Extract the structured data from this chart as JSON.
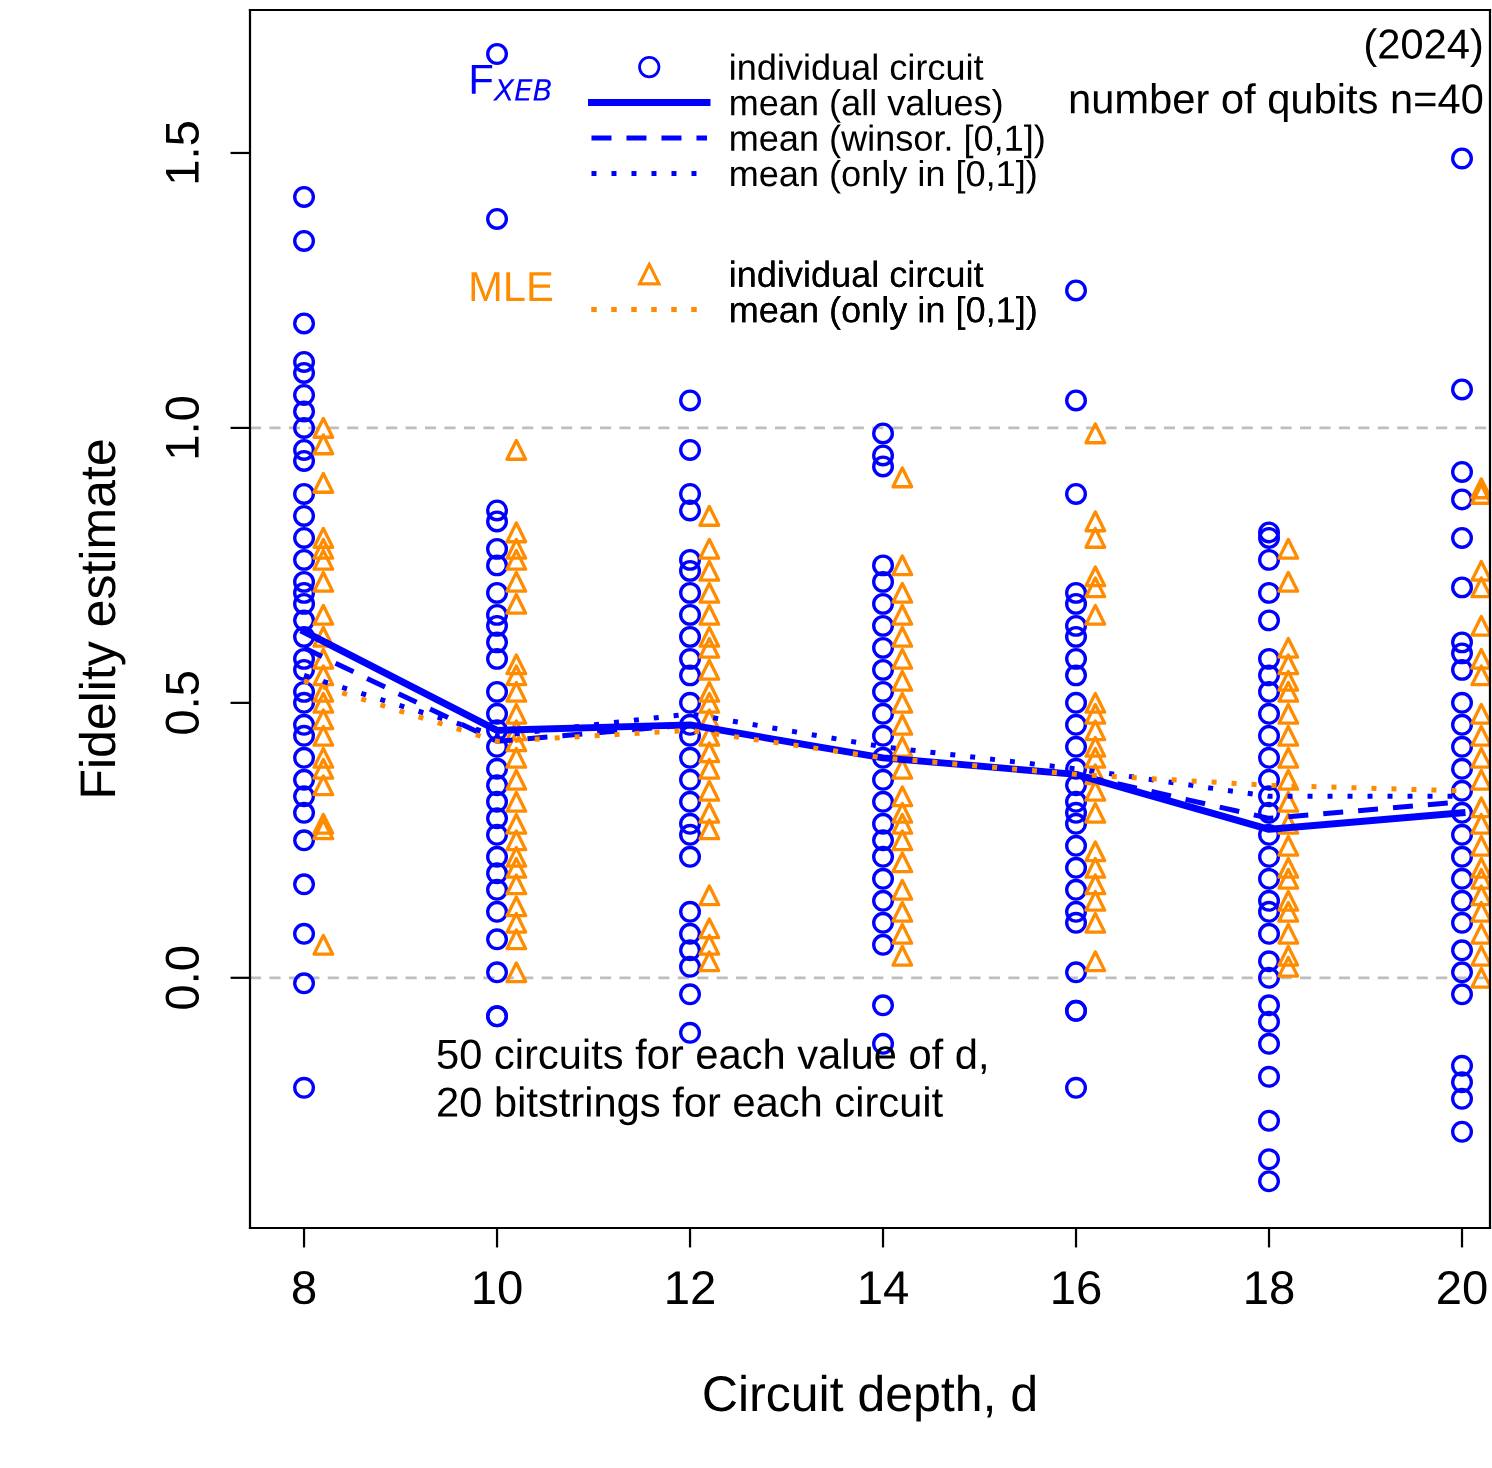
{
  "chart_data": {
    "type": "scatter",
    "title": "(2024)",
    "subtitle": "number of qubits n=40",
    "xlabel": "Circuit depth, d",
    "ylabel": "Fidelity estimate",
    "xlim": [
      7.44,
      20.29
    ],
    "ylim": [
      -0.455,
      1.76
    ],
    "xticks": [
      8,
      10,
      12,
      14,
      16,
      18,
      20
    ],
    "yticks": [
      {
        "value": 0,
        "label": "0.0"
      },
      0.5,
      {
        "value": 1,
        "label": "1.0"
      },
      1.5
    ],
    "grid": false,
    "legend": "top",
    "ref_lines": [
      {
        "axis": "y",
        "value": 0,
        "color": "#bebebe",
        "line_style": "dashed"
      },
      {
        "axis": "y",
        "value": 1,
        "color": "#bebebe",
        "line_style": "dashed"
      }
    ],
    "annotations": [
      "F$_{XEB}$",
      "MLE",
      "50 circuits for each value of d,\n20 bitstrings for each circuit"
    ],
    "series": [
      {
        "name": "individual circuit",
        "marker": "circle",
        "color": "#0000ff",
        "x": [
          8,
          8,
          8,
          8,
          8,
          8,
          8,
          8,
          8,
          8,
          8,
          8,
          8,
          8,
          8,
          8,
          8,
          8,
          8,
          8,
          8,
          8,
          8,
          8,
          8,
          8,
          8,
          8,
          8,
          8,
          8,
          8,
          8,
          8,
          10,
          10,
          10,
          10,
          10,
          10,
          10,
          10,
          10,
          10,
          10,
          10,
          10,
          10,
          10,
          10,
          10,
          10,
          10,
          10,
          10,
          10,
          10,
          10,
          10,
          10,
          10,
          10,
          12,
          12,
          12,
          12,
          12,
          12,
          12,
          12,
          12,
          12,
          12,
          12,
          12,
          12,
          12,
          12,
          12,
          12,
          12,
          12,
          12,
          12,
          12,
          12,
          12,
          12,
          14,
          14,
          14,
          14,
          14,
          14,
          14,
          14,
          14,
          14,
          14,
          14,
          14,
          14,
          14,
          14,
          14,
          14,
          14,
          14,
          14,
          14,
          14,
          14,
          16,
          16,
          16,
          16,
          16,
          16,
          16,
          16,
          16,
          16,
          16,
          16,
          16,
          16,
          16,
          16,
          16,
          16,
          16,
          16,
          16,
          16,
          16,
          16,
          16,
          16,
          18,
          18,
          18,
          18,
          18,
          18,
          18,
          18,
          18,
          18,
          18,
          18,
          18,
          18,
          18,
          18,
          18,
          18,
          18,
          18,
          18,
          18,
          18,
          18,
          18,
          18,
          18,
          18,
          18,
          20,
          20,
          20,
          20,
          20,
          20,
          20,
          20,
          20,
          20,
          20,
          20,
          20,
          20,
          20,
          20,
          20,
          20,
          20,
          20,
          20,
          20,
          20,
          20,
          20,
          20,
          20
        ],
        "values": [
          1.42,
          1.34,
          1.19,
          1.12,
          1.1,
          1.06,
          1.03,
          1.0,
          0.96,
          0.94,
          0.88,
          0.84,
          0.8,
          0.76,
          0.72,
          0.7,
          0.68,
          0.65,
          0.62,
          0.58,
          0.56,
          0.52,
          0.5,
          0.46,
          0.44,
          0.4,
          0.36,
          0.33,
          0.3,
          0.25,
          0.17,
          0.08,
          -0.01,
          -0.2,
          1.68,
          1.38,
          0.85,
          0.83,
          0.78,
          0.75,
          0.7,
          0.66,
          0.64,
          0.61,
          0.58,
          0.52,
          0.48,
          0.45,
          0.42,
          0.38,
          0.35,
          0.32,
          0.29,
          0.26,
          0.22,
          0.19,
          0.16,
          0.12,
          0.07,
          0.01,
          -0.07,
          -0.07,
          1.05,
          0.96,
          0.88,
          0.85,
          0.76,
          0.74,
          0.7,
          0.66,
          0.62,
          0.58,
          0.55,
          0.5,
          0.46,
          0.44,
          0.4,
          0.36,
          0.32,
          0.28,
          0.26,
          0.22,
          0.12,
          0.08,
          0.05,
          0.02,
          -0.03,
          -0.1,
          0.99,
          0.95,
          0.93,
          0.75,
          0.72,
          0.68,
          0.64,
          0.6,
          0.56,
          0.52,
          0.48,
          0.44,
          0.4,
          0.36,
          0.32,
          0.28,
          0.25,
          0.22,
          0.18,
          0.14,
          0.1,
          0.06,
          -0.05,
          -0.12,
          1.25,
          1.05,
          0.88,
          0.7,
          0.68,
          0.64,
          0.62,
          0.58,
          0.55,
          0.5,
          0.46,
          0.42,
          0.38,
          0.35,
          0.32,
          0.3,
          0.28,
          0.24,
          0.2,
          0.16,
          0.12,
          0.1,
          0.01,
          -0.06,
          -0.06,
          -0.2,
          0.81,
          0.8,
          0.76,
          0.7,
          0.65,
          0.58,
          0.55,
          0.52,
          0.48,
          0.44,
          0.4,
          0.36,
          0.33,
          0.3,
          0.26,
          0.22,
          0.18,
          0.14,
          0.12,
          0.08,
          0.03,
          0.0,
          -0.05,
          -0.08,
          -0.12,
          -0.18,
          -0.26,
          -0.33,
          -0.37,
          1.49,
          1.07,
          0.92,
          0.87,
          0.8,
          0.71,
          0.61,
          0.59,
          0.56,
          0.5,
          0.46,
          0.42,
          0.38,
          0.34,
          0.3,
          0.26,
          0.22,
          0.18,
          0.14,
          0.1,
          0.05,
          0.01,
          -0.03,
          -0.16,
          -0.19,
          -0.22,
          -0.28
        ]
      },
      {
        "name": "mean (all values)",
        "type": "line",
        "line_style": "solid",
        "color": "#0000ff",
        "x": [
          8,
          10,
          12,
          14,
          16,
          18,
          20
        ],
        "values": [
          0.63,
          0.45,
          0.46,
          0.4,
          0.37,
          0.27,
          0.3
        ]
      },
      {
        "name": "mean (winsor. [0,1])",
        "type": "line",
        "line_style": "dashed",
        "color": "#0000ff",
        "x": [
          8,
          10,
          12,
          14,
          16,
          18,
          20
        ],
        "values": [
          0.6,
          0.43,
          0.46,
          0.4,
          0.37,
          0.29,
          0.32
        ]
      },
      {
        "name": "mean (only in [0,1])",
        "type": "line",
        "line_style": "dotted",
        "color": "#0000ff",
        "x": [
          8,
          10,
          12,
          14,
          16,
          18,
          20
        ],
        "values": [
          0.55,
          0.44,
          0.48,
          0.42,
          0.38,
          0.33,
          0.33
        ]
      },
      {
        "name": "individual circuit",
        "marker": "triangle",
        "color": "#ff8c00",
        "x": [
          8.2,
          8.2,
          8.2,
          8.2,
          8.2,
          8.2,
          8.2,
          8.2,
          8.2,
          8.2,
          8.2,
          8.2,
          8.2,
          8.2,
          8.2,
          8.2,
          8.2,
          8.2,
          8.2,
          8.2,
          8.2,
          10.2,
          10.2,
          10.2,
          10.2,
          10.2,
          10.2,
          10.2,
          10.2,
          10.2,
          10.2,
          10.2,
          10.2,
          10.2,
          10.2,
          10.2,
          10.2,
          10.2,
          10.2,
          10.2,
          10.2,
          10.2,
          10.2,
          10.2,
          10.2,
          12.2,
          12.2,
          12.2,
          12.2,
          12.2,
          12.2,
          12.2,
          12.2,
          12.2,
          12.2,
          12.2,
          12.2,
          12.2,
          12.2,
          12.2,
          12.2,
          12.2,
          12.2,
          12.2,
          12.2,
          12.2,
          14.2,
          14.2,
          14.2,
          14.2,
          14.2,
          14.2,
          14.2,
          14.2,
          14.2,
          14.2,
          14.2,
          14.2,
          14.2,
          14.2,
          14.2,
          14.2,
          14.2,
          14.2,
          14.2,
          14.2,
          16.2,
          16.2,
          16.2,
          16.2,
          16.2,
          16.2,
          16.2,
          16.2,
          16.2,
          16.2,
          16.2,
          16.2,
          16.2,
          16.2,
          16.2,
          16.2,
          16.2,
          16.2,
          16.2,
          16.2,
          18.2,
          18.2,
          18.2,
          18.2,
          18.2,
          18.2,
          18.2,
          18.2,
          18.2,
          18.2,
          18.2,
          18.2,
          18.2,
          18.2,
          18.2,
          18.2,
          18.2,
          18.2,
          18.2,
          18.2,
          20.2,
          20.2,
          20.2,
          20.2,
          20.2,
          20.2,
          20.2,
          20.2,
          20.2,
          20.2,
          20.2,
          20.2,
          20.2,
          20.2,
          20.2,
          20.2,
          20.2,
          20.2,
          20.2,
          20.2,
          20.2
        ],
        "values": [
          1.0,
          0.97,
          0.9,
          0.8,
          0.78,
          0.76,
          0.72,
          0.66,
          0.62,
          0.58,
          0.55,
          0.52,
          0.5,
          0.47,
          0.44,
          0.4,
          0.38,
          0.35,
          0.28,
          0.27,
          0.06,
          0.96,
          0.81,
          0.78,
          0.76,
          0.72,
          0.68,
          0.57,
          0.55,
          0.52,
          0.48,
          0.45,
          0.43,
          0.4,
          0.36,
          0.32,
          0.28,
          0.25,
          0.22,
          0.2,
          0.17,
          0.13,
          0.1,
          0.07,
          0.01,
          0.84,
          0.78,
          0.74,
          0.7,
          0.66,
          0.62,
          0.6,
          0.56,
          0.52,
          0.5,
          0.47,
          0.44,
          0.41,
          0.38,
          0.34,
          0.3,
          0.27,
          0.15,
          0.09,
          0.06,
          0.03,
          0.91,
          0.75,
          0.7,
          0.66,
          0.62,
          0.58,
          0.54,
          0.5,
          0.46,
          0.42,
          0.38,
          0.33,
          0.3,
          0.28,
          0.25,
          0.21,
          0.16,
          0.12,
          0.08,
          0.04,
          0.99,
          0.83,
          0.8,
          0.73,
          0.71,
          0.66,
          0.5,
          0.48,
          0.45,
          0.42,
          0.4,
          0.37,
          0.34,
          0.3,
          0.23,
          0.2,
          0.17,
          0.14,
          0.1,
          0.03,
          0.78,
          0.72,
          0.6,
          0.57,
          0.54,
          0.52,
          0.48,
          0.44,
          0.4,
          0.36,
          0.32,
          0.28,
          0.24,
          0.2,
          0.18,
          0.14,
          0.12,
          0.08,
          0.04,
          0.02,
          0.89,
          0.88,
          0.74,
          0.71,
          0.64,
          0.58,
          0.55,
          0.48,
          0.44,
          0.4,
          0.36,
          0.31,
          0.28,
          0.24,
          0.2,
          0.18,
          0.15,
          0.12,
          0.08,
          0.04,
          0.0
        ]
      },
      {
        "name": "mean (only in [0,1])",
        "type": "line",
        "line_style": "dotted",
        "color": "#ff8c00",
        "x": [
          8,
          10,
          12,
          14,
          16,
          18,
          20
        ],
        "values": [
          0.54,
          0.43,
          0.45,
          0.4,
          0.37,
          0.35,
          0.34
        ]
      }
    ]
  }
}
